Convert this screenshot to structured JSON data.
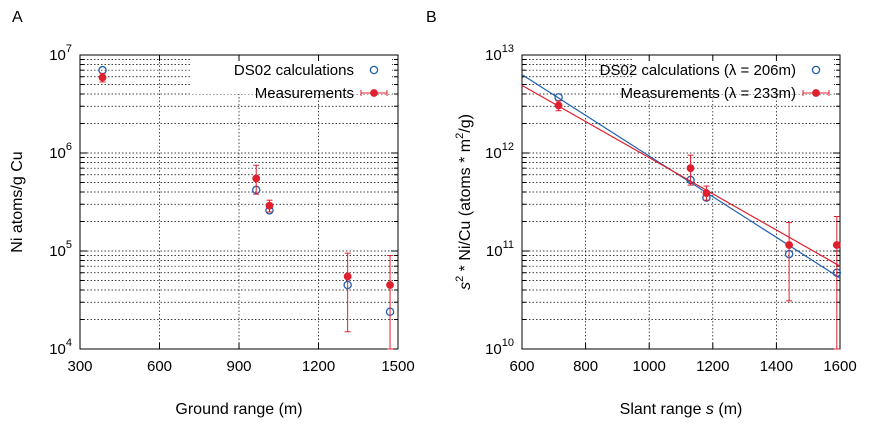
{
  "chart_data": [
    {
      "panel_label": "A",
      "type": "scatter",
      "xlabel": "Ground range (m)",
      "ylabel": "Ni atoms/g Cu",
      "xlim": [
        300,
        1500
      ],
      "ylim": [
        10000,
        10000000
      ],
      "yscale": "log",
      "grid": true,
      "legend_position": "top-right",
      "x_ticks": [
        300,
        600,
        900,
        1200,
        1500
      ],
      "x_tick_labels": [
        "300",
        "600",
        "900",
        "1200",
        "1500"
      ],
      "y_ticks": [
        10000,
        100000,
        1000000,
        10000000
      ],
      "y_tick_labels": [
        {
          "base": "10",
          "exp": "4"
        },
        {
          "base": "10",
          "exp": "5"
        },
        {
          "base": "10",
          "exp": "6"
        },
        {
          "base": "10",
          "exp": "7"
        }
      ],
      "series": [
        {
          "name": "DS02 calculations",
          "style": "open-circle",
          "color": "#1f5fb0",
          "points": [
            {
              "x": 385,
              "y": 7000000
            },
            {
              "x": 965,
              "y": 420000
            },
            {
              "x": 1015,
              "y": 260000
            },
            {
              "x": 1310,
              "y": 45000
            },
            {
              "x": 1470,
              "y": 24000
            }
          ]
        },
        {
          "name": "Measurements",
          "style": "filled-circle-errorbar",
          "color": "#e0202f",
          "points": [
            {
              "x": 385,
              "y": 5900000,
              "ylo": 5300000,
              "yhi": 6500000
            },
            {
              "x": 965,
              "y": 550000,
              "ylo": 380000,
              "yhi": 750000
            },
            {
              "x": 1015,
              "y": 290000,
              "ylo": 250000,
              "yhi": 330000
            },
            {
              "x": 1310,
              "y": 55000,
              "ylo": 15000,
              "yhi": 95000
            },
            {
              "x": 1470,
              "y": 45000,
              "ylo": 10000,
              "yhi": 90000
            }
          ]
        }
      ]
    },
    {
      "panel_label": "B",
      "type": "scatter",
      "xlabel_parts": {
        "pre": "Slant range ",
        "italic": "s",
        "post": " (m)"
      },
      "ylabel_parts": [
        "s",
        "2",
        " * Ni/Cu (atoms * m",
        "2",
        "/g)"
      ],
      "xlim": [
        600,
        1600
      ],
      "ylim": [
        10000000000,
        10000000000000
      ],
      "yscale": "log",
      "grid": true,
      "legend_position": "top-right",
      "x_ticks": [
        600,
        800,
        1000,
        1200,
        1400,
        1600
      ],
      "x_tick_labels": [
        "600",
        "800",
        "1000",
        "1200",
        "1400",
        "1600"
      ],
      "y_ticks": [
        10000000000,
        100000000000,
        1000000000000,
        10000000000000
      ],
      "y_tick_labels": [
        {
          "base": "10",
          "exp": "10"
        },
        {
          "base": "10",
          "exp": "11"
        },
        {
          "base": "10",
          "exp": "12"
        },
        {
          "base": "10",
          "exp": "13"
        }
      ],
      "series": [
        {
          "name": "DS02 calculations (λ = 206m)",
          "style": "open-circle",
          "color": "#1f5fb0",
          "points": [
            {
              "x": 715,
              "y": 3700000000000
            },
            {
              "x": 1130,
              "y": 530000000000
            },
            {
              "x": 1180,
              "y": 350000000000
            },
            {
              "x": 1440,
              "y": 93000000000
            },
            {
              "x": 1590,
              "y": 60000000000
            }
          ],
          "fit_line": [
            {
              "x": 600,
              "y": 6300000000000
            },
            {
              "x": 1600,
              "y": 53000000000
            }
          ]
        },
        {
          "name": "Measurements (λ = 233m)",
          "style": "filled-circle-errorbar",
          "color": "#e0202f",
          "points": [
            {
              "x": 715,
              "y": 3050000000000,
              "ylo": 2700000000000,
              "yhi": 3400000000000
            },
            {
              "x": 1130,
              "y": 700000000000,
              "ylo": 470000000000,
              "yhi": 950000000000
            },
            {
              "x": 1180,
              "y": 390000000000,
              "ylo": 330000000000,
              "yhi": 460000000000
            },
            {
              "x": 1440,
              "y": 115000000000,
              "ylo": 31000000000,
              "yhi": 195000000000
            },
            {
              "x": 1590,
              "y": 115000000000,
              "ylo": 10000000000,
              "yhi": 225000000000
            }
          ],
          "fit_line": [
            {
              "x": 600,
              "y": 4900000000000
            },
            {
              "x": 1600,
              "y": 70000000000
            }
          ]
        }
      ]
    }
  ]
}
